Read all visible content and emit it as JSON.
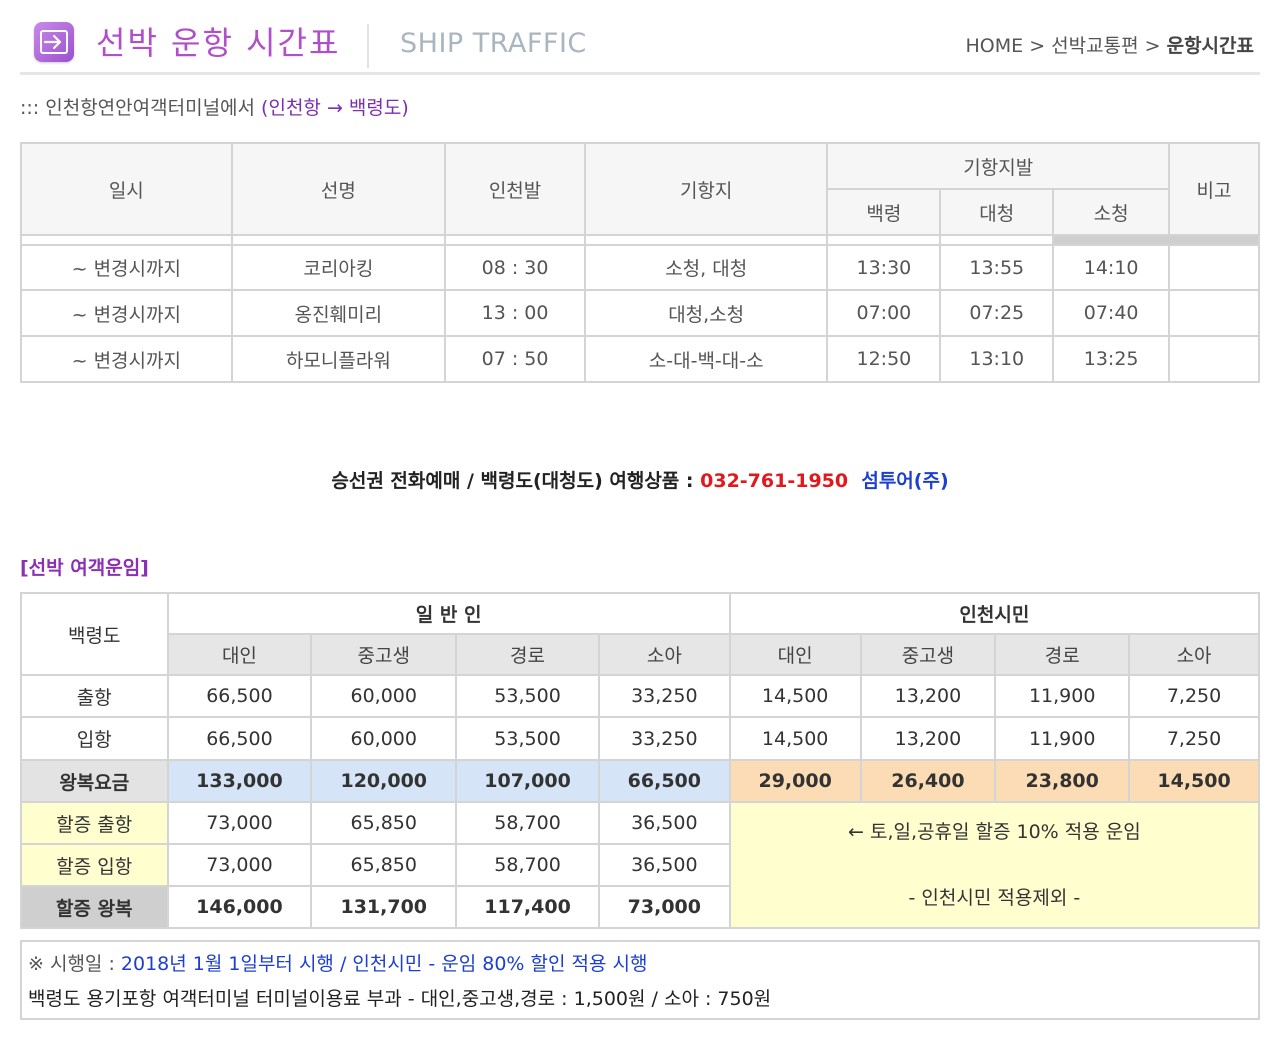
{
  "header": {
    "title": "선박 운항 시간표",
    "subtitle": "SHIP TRAFFIC",
    "breadcrumb": [
      "HOME",
      "선박교통편",
      "운항시간표"
    ],
    "separator": ">",
    "icon": "arrow-right-icon"
  },
  "route": {
    "prefix": "::: 인천항연안여객터미널에서 ",
    "highlight": "(인천항 → 백령도)"
  },
  "schedule": {
    "headers": {
      "date": "일시",
      "ship": "선명",
      "depart": "인천발",
      "ports": "기항지",
      "port_depart": "기항지발",
      "baengnyeong": "백령",
      "daecheong": "대청",
      "socheong": "소청",
      "note": "비고"
    },
    "rows": [
      {
        "date": "~ 변경시까지",
        "ship": "코리아킹",
        "depart": "08 : 30",
        "ports": "소청, 대청",
        "b": "13:30",
        "d": "13:55",
        "s": "14:10",
        "note": ""
      },
      {
        "date": "~ 변경시까지",
        "ship": "옹진훼미리",
        "depart": "13 : 00",
        "ports": "대청,소청",
        "b": "07:00",
        "d": "07:25",
        "s": "07:40",
        "note": ""
      },
      {
        "date": "~ 변경시까지",
        "ship": "하모니플라워",
        "depart": "07 : 50",
        "ports": "소-대-백-대-소",
        "b": "12:50",
        "d": "13:10",
        "s": "13:25",
        "note": ""
      }
    ]
  },
  "booking": {
    "label": "승선권 전화예매 / 백령도(대청도) 여행상품 : ",
    "phone": "032-761-1950",
    "agency": "섬투어(주)"
  },
  "fares": {
    "title": "[선박 여객운임]",
    "corner": "백령도",
    "general": "일 반 인",
    "citizen": "인천시민",
    "cols": [
      "대인",
      "중고생",
      "경로",
      "소아"
    ],
    "rows": {
      "out": {
        "label": "출항",
        "gen": [
          "66,500",
          "60,000",
          "53,500",
          "33,250"
        ],
        "cit": [
          "14,500",
          "13,200",
          "11,900",
          "7,250"
        ]
      },
      "in": {
        "label": "입항",
        "gen": [
          "66,500",
          "60,000",
          "53,500",
          "33,250"
        ],
        "cit": [
          "14,500",
          "13,200",
          "11,900",
          "7,250"
        ]
      },
      "round": {
        "label": "왕복요금",
        "gen": [
          "133,000",
          "120,000",
          "107,000",
          "66,500"
        ],
        "cit": [
          "29,000",
          "26,400",
          "23,800",
          "14,500"
        ]
      },
      "sur_out": {
        "label": "할증 출항",
        "gen": [
          "73,000",
          "65,850",
          "58,700",
          "36,500"
        ]
      },
      "sur_in": {
        "label": "할증 입항",
        "gen": [
          "73,000",
          "65,850",
          "58,700",
          "36,500"
        ]
      },
      "sur_round": {
        "label": "할증 왕복",
        "gen": [
          "146,000",
          "131,700",
          "117,400",
          "73,000"
        ]
      }
    },
    "surcharge_note1": "← 토,일,공휴일 할증 10% 적용 운임",
    "surcharge_note2": "- 인천시민 적용제외 -"
  },
  "notes": {
    "prefix": "※ 시행일 : ",
    "effective": "2018년 1월 1일부터 시행 / 인천시민 - 운임 80% 할인 적용 시행",
    "terminal": "백령도 용기포항 여객터미널 터미널이용료 부과 - 대인,중고생,경로 : 1,500원 / 소아 : 750원"
  }
}
